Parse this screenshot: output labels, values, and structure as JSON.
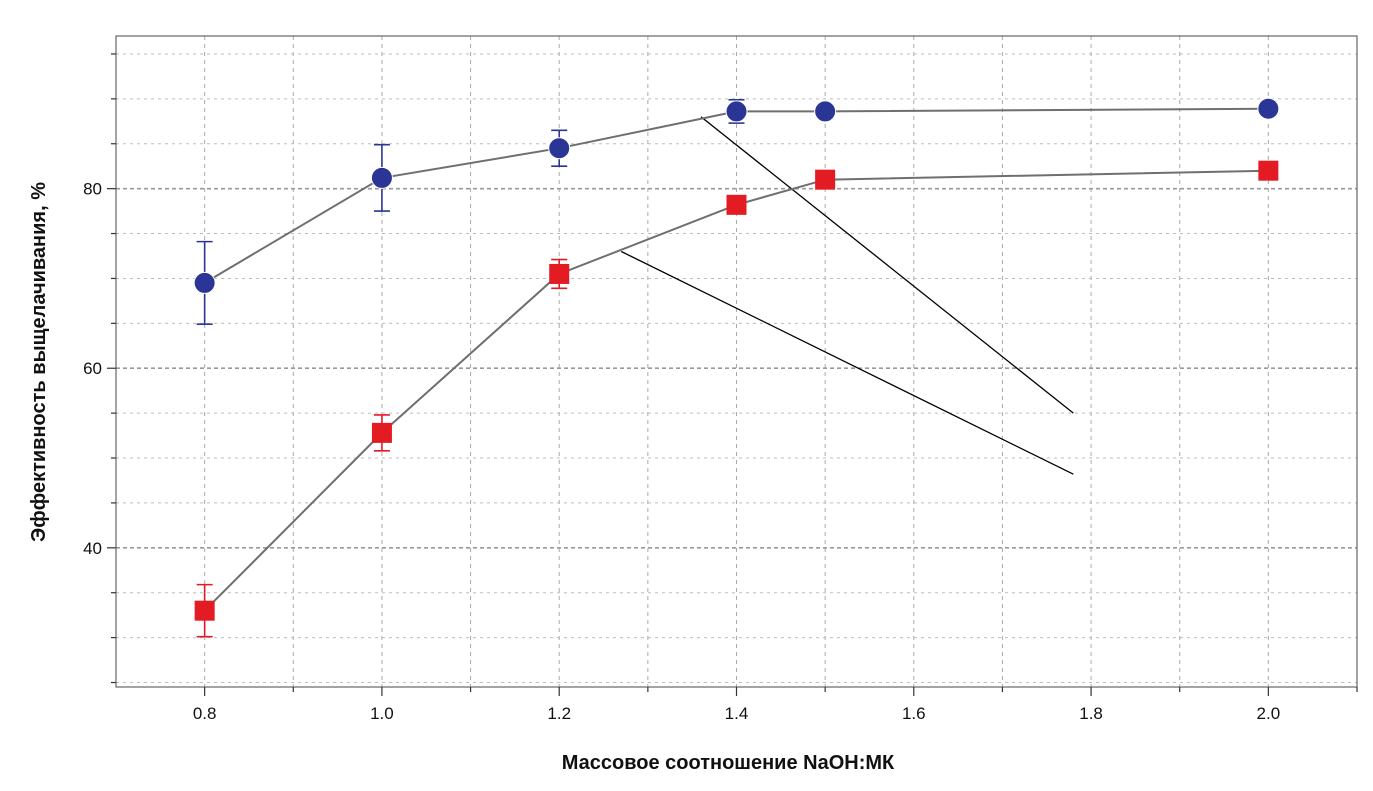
{
  "chart_data": {
    "type": "scatter",
    "title": "",
    "xlabel": "Массовое соотношение NaOH:МК",
    "ylabel": "Эффективность выщелачивания, %",
    "xlim": [
      0.7,
      2.1
    ],
    "ylim": [
      24.5,
      97
    ],
    "x_ticks": [
      0.8,
      1.0,
      1.2,
      1.4,
      1.6,
      1.8,
      2.0
    ],
    "x_tick_labels": [
      "0.8",
      "1.0",
      "1.2",
      "1.4",
      "1.6",
      "1.8",
      "2.0"
    ],
    "y_ticks": [
      40,
      60,
      80
    ],
    "y_tick_labels": [
      "40",
      "60",
      "80"
    ],
    "grid": true,
    "series": [
      {
        "marker": "circle",
        "color": "#2a3596",
        "x": [
          0.8,
          1.0,
          1.2,
          1.4,
          1.5,
          2.0
        ],
        "y": [
          69.5,
          81.2,
          84.5,
          88.6,
          88.6,
          88.9
        ],
        "err": [
          4.6,
          3.7,
          2.0,
          1.3,
          0.7,
          0.8
        ]
      },
      {
        "marker": "square",
        "color": "#e31b23",
        "x": [
          0.8,
          1.0,
          1.2,
          1.4,
          1.5,
          2.0
        ],
        "y": [
          33.0,
          52.8,
          70.5,
          78.2,
          81.0,
          82.0
        ],
        "err": [
          2.9,
          2.0,
          1.6,
          1.0,
          0.8,
          0.9
        ]
      }
    ],
    "annotations": [
      {
        "type": "line",
        "x": [
          1.36,
          1.78
        ],
        "y": [
          88.0,
          55.0
        ]
      },
      {
        "type": "line",
        "x": [
          1.27,
          1.78
        ],
        "y": [
          73.0,
          48.2
        ]
      }
    ]
  }
}
